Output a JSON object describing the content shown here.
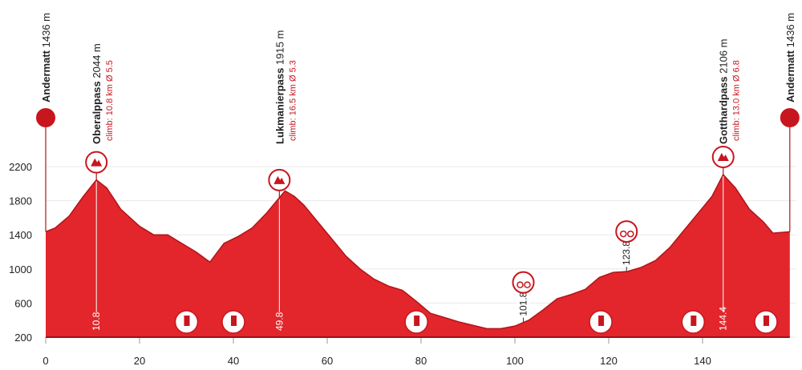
{
  "chart_data": {
    "type": "area",
    "x": [
      0,
      2,
      5,
      8,
      10.8,
      13,
      16,
      20,
      23,
      26,
      29,
      32,
      35,
      38,
      41,
      44,
      47,
      51,
      53,
      55,
      58,
      61,
      64,
      67,
      70,
      73,
      76,
      79,
      82,
      85,
      88,
      91,
      94,
      97,
      100,
      103,
      106,
      109,
      112,
      115,
      118,
      121,
      124,
      127,
      130,
      133,
      136,
      139,
      142,
      144.4,
      147,
      150,
      153,
      155,
      158.6
    ],
    "series": [
      {
        "color": "#e2262b",
        "values": [
          1436,
          1480,
          1620,
          1850,
          2044,
          1950,
          1700,
          1500,
          1400,
          1400,
          1300,
          1200,
          1080,
          1300,
          1380,
          1480,
          1650,
          1915,
          1850,
          1750,
          1550,
          1350,
          1150,
          1000,
          880,
          800,
          750,
          620,
          480,
          430,
          380,
          340,
          300,
          300,
          330,
          400,
          520,
          650,
          700,
          760,
          900,
          960,
          970,
          1020,
          1100,
          1250,
          1450,
          1650,
          1850,
          2106,
          1950,
          1700,
          1550,
          1420,
          1436
        ]
      }
    ],
    "xlim": [
      0,
      160
    ],
    "ylim": [
      200,
      2200
    ],
    "xticks": [
      0,
      20,
      40,
      60,
      80,
      100,
      120,
      140
    ],
    "yticks": [
      200,
      600,
      1000,
      1400,
      1800,
      2200
    ],
    "grid": true,
    "places": [
      {
        "x": 0,
        "name": "Andermatt",
        "elevation": "1436 m"
      },
      {
        "x": 10.8,
        "name": "Oberalppass",
        "elevation": "2044 m",
        "climb": "climb: 10.8 km Ø 5.5"
      },
      {
        "x": 49.8,
        "name": "Lukmanierpass",
        "elevation": "1915 m",
        "climb": "climb: 16.5 km Ø 5.3"
      },
      {
        "x": 144.4,
        "name": "Gotthardpass",
        "elevation": "2106 m",
        "climb": "climb: 13.0 km Ø 6.8"
      },
      {
        "x": 158.6,
        "name": "Andermatt",
        "elevation": "1436 m"
      }
    ],
    "sprints": [
      101.8,
      123.8
    ],
    "service_points": [
      30,
      40,
      79,
      118.3,
      138,
      153.5
    ]
  }
}
